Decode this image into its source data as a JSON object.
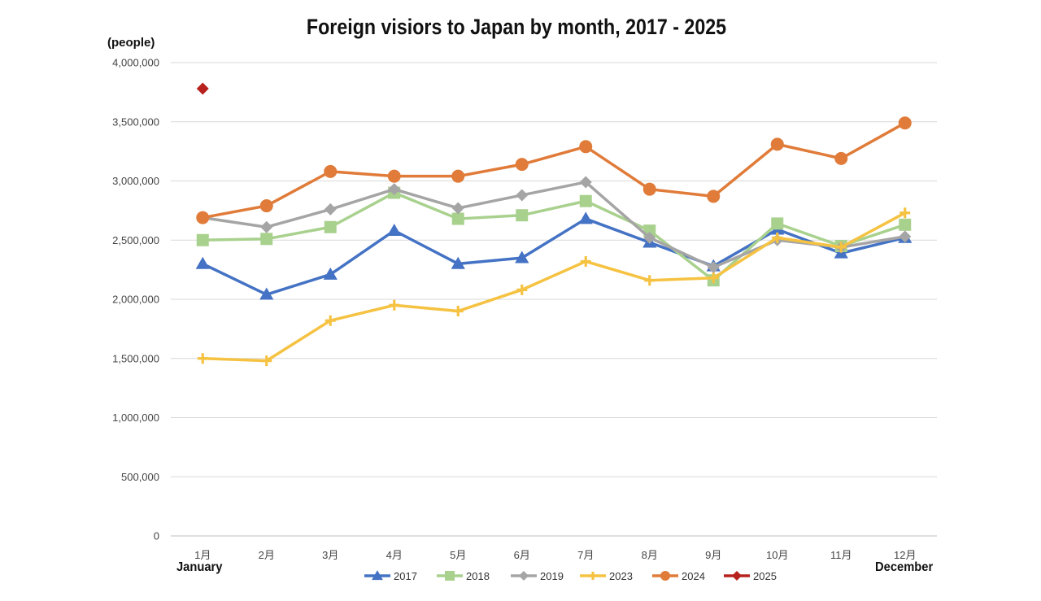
{
  "chart_data": {
    "type": "line",
    "title": "Foreign visiors to Japan by month, 2017 - 2025",
    "ylabel": "(people)",
    "x_start_note": "January",
    "x_end_note": "December",
    "categories": [
      "1月",
      "2月",
      "3月",
      "4月",
      "5月",
      "6月",
      "7月",
      "8月",
      "9月",
      "10月",
      "11月",
      "12月"
    ],
    "ylim": [
      0,
      4000000
    ],
    "y_ticks": [
      {
        "value": 0,
        "label": "0"
      },
      {
        "value": 500000,
        "label": "500,000"
      },
      {
        "value": 1000000,
        "label": "1,000,000"
      },
      {
        "value": 1500000,
        "label": "1,500,000"
      },
      {
        "value": 2000000,
        "label": "2,000,000"
      },
      {
        "value": 2500000,
        "label": "2,500,000"
      },
      {
        "value": 3000000,
        "label": "3,000,000"
      },
      {
        "value": 3500000,
        "label": "3,500,000"
      },
      {
        "value": 4000000,
        "label": "4,000,000"
      }
    ],
    "grid": true,
    "legend_position": "bottom",
    "series": [
      {
        "name": "2017",
        "color": "#4472C4",
        "marker": "triangle",
        "values": [
          2300000,
          2040000,
          2210000,
          2580000,
          2300000,
          2350000,
          2680000,
          2480000,
          2280000,
          2590000,
          2390000,
          2520000
        ]
      },
      {
        "name": "2018",
        "color": "#A9D18E",
        "marker": "square",
        "values": [
          2500000,
          2510000,
          2610000,
          2900000,
          2680000,
          2710000,
          2830000,
          2580000,
          2160000,
          2640000,
          2450000,
          2630000
        ]
      },
      {
        "name": "2019",
        "color": "#A5A5A5",
        "marker": "diamond",
        "values": [
          2690000,
          2610000,
          2760000,
          2930000,
          2770000,
          2880000,
          2990000,
          2520000,
          2270000,
          2500000,
          2440000,
          2530000
        ]
      },
      {
        "name": "2023",
        "color": "#F5C242",
        "marker": "plus",
        "values": [
          1500000,
          1480000,
          1820000,
          1950000,
          1900000,
          2080000,
          2320000,
          2160000,
          2180000,
          2520000,
          2440000,
          2730000
        ]
      },
      {
        "name": "2024",
        "color": "#E07B39",
        "marker": "circle",
        "values": [
          2690000,
          2790000,
          3080000,
          3040000,
          3040000,
          3140000,
          3290000,
          2930000,
          2870000,
          3310000,
          3190000,
          3490000
        ]
      },
      {
        "name": "2025",
        "color": "#B8221E",
        "marker": "diamond",
        "values": [
          3780000,
          null,
          null,
          null,
          null,
          null,
          null,
          null,
          null,
          null,
          null,
          null
        ]
      }
    ]
  }
}
